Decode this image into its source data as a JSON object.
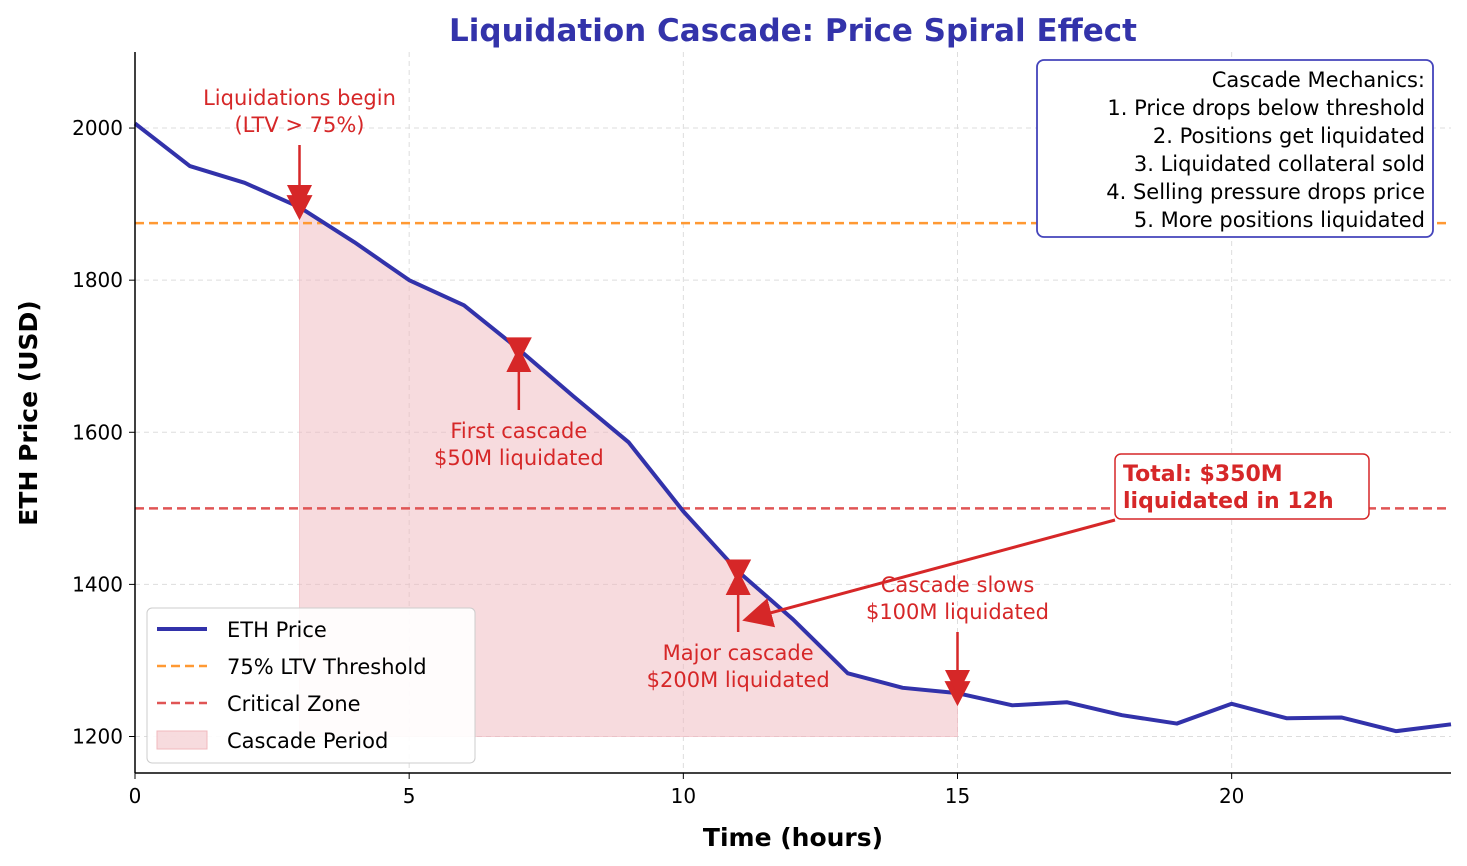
{
  "chart_data": {
    "type": "line",
    "title": "Liquidation Cascade: Price Spiral Effect",
    "xlabel": "Time (hours)",
    "ylabel": "ETH Price (USD)",
    "xlim": [
      0,
      24
    ],
    "ylim": [
      1152,
      2100
    ],
    "xticks": [
      0,
      5,
      10,
      15,
      20
    ],
    "yticks": [
      1200,
      1400,
      1600,
      1800,
      2000
    ],
    "grid": true,
    "legend_position": "lower-left",
    "series": [
      {
        "name": "ETH Price",
        "color": "#3232aa",
        "x": [
          0,
          1,
          2,
          3,
          4,
          5,
          6,
          7,
          8,
          9,
          10,
          11,
          12,
          13,
          14,
          15,
          16,
          17,
          18,
          19,
          20,
          21,
          22,
          23,
          24
        ],
        "y": [
          2006,
          1950,
          1928,
          1896,
          1850,
          1800,
          1767,
          1709,
          1647,
          1587,
          1496,
          1417,
          1354,
          1283,
          1264,
          1257,
          1241,
          1245,
          1228,
          1217,
          1243,
          1224,
          1225,
          1207,
          1216
        ]
      }
    ],
    "hlines": [
      {
        "name": "75% LTV Threshold",
        "y": 1875,
        "color": "#ff9933",
        "style": "dashed"
      },
      {
        "name": "Critical Zone",
        "y": 1500,
        "color": "#e05555",
        "style": "dashed"
      }
    ],
    "fill": {
      "name": "Cascade Period",
      "x_from": 3,
      "x_to": 15,
      "y_base": 1200,
      "color": "#f0b8be"
    },
    "markers": {
      "x": [
        3,
        7,
        11,
        15
      ],
      "color": "#d62728",
      "shape": "triangle-down"
    },
    "annotations": [
      {
        "lines": [
          "Liquidations begin",
          "(LTV > 75%)"
        ],
        "x": 3
      },
      {
        "lines": [
          "First cascade",
          "$50M liquidated"
        ],
        "x": 7
      },
      {
        "lines": [
          "Major cascade",
          "$200M liquidated"
        ],
        "x": 11
      },
      {
        "lines": [
          "Cascade slows",
          "$100M liquidated"
        ],
        "x": 15
      }
    ],
    "total_box": {
      "lines": [
        "Total: $350M",
        "liquidated in 12h"
      ]
    },
    "mechanics_box": {
      "lines": [
        "Cascade Mechanics:",
        "1. Price drops below threshold",
        "2. Positions get liquidated",
        "3. Liquidated collateral sold",
        "4. Selling pressure drops price",
        "5. More positions liquidated"
      ]
    },
    "accent_color": "#d62728",
    "title_color": "#3333aa"
  }
}
